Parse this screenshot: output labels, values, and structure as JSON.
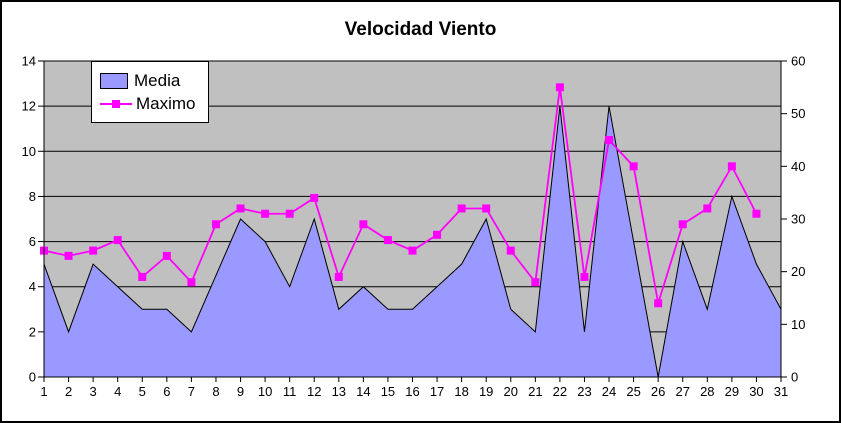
{
  "chart_data": {
    "type": "area+line",
    "title": "Velocidad Viento",
    "categories": [
      1,
      2,
      3,
      4,
      5,
      6,
      7,
      8,
      9,
      10,
      11,
      12,
      13,
      14,
      15,
      16,
      17,
      18,
      19,
      20,
      21,
      22,
      23,
      24,
      25,
      26,
      27,
      28,
      29,
      30,
      31
    ],
    "series": [
      {
        "name": "Media",
        "type": "area",
        "axis": "left",
        "color": "#9999FF",
        "values": [
          5,
          2,
          5,
          4,
          3,
          3,
          2,
          4.5,
          7,
          6,
          4,
          7,
          3,
          4,
          3,
          3,
          4,
          5,
          7,
          3,
          2,
          12,
          2,
          12,
          6,
          0,
          6,
          3,
          8,
          5,
          3
        ]
      },
      {
        "name": "Maximo",
        "type": "line",
        "axis": "right",
        "color": "#FF00FF",
        "values": [
          24,
          23,
          24,
          26,
          19,
          23,
          18,
          29,
          32,
          31,
          31,
          34,
          19,
          29,
          26,
          24,
          27,
          32,
          32,
          24,
          18,
          55,
          19,
          45,
          40,
          14,
          29,
          32,
          40,
          31,
          null
        ]
      }
    ],
    "left_axis": {
      "min": 0,
      "max": 14,
      "ticks": [
        0,
        2,
        4,
        6,
        8,
        10,
        12,
        14
      ]
    },
    "right_axis": {
      "min": 0,
      "max": 60,
      "ticks": [
        0,
        10,
        20,
        30,
        40,
        50,
        60
      ]
    },
    "xlabel": "",
    "ylabel": "",
    "plot": {
      "background": "#C0C0C0",
      "grid": "on",
      "grid_color": "#000000",
      "axis_color": "#000000",
      "legend_position": "top-left",
      "area_border_color": "#000000"
    }
  }
}
